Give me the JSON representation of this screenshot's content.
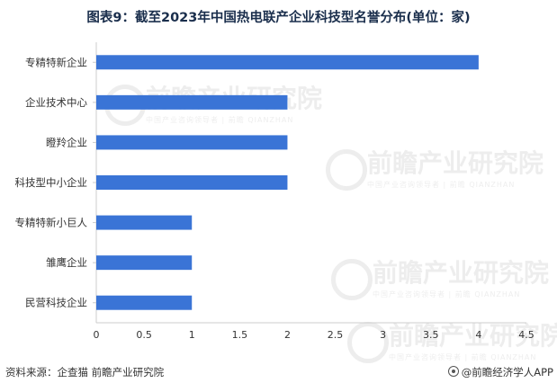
{
  "chart_data": {
    "type": "bar",
    "orientation": "horizontal",
    "title": "图表9：截至2023年中国热电联产企业科技型名誉分布(单位：家)",
    "categories": [
      "专精特新企业",
      "企业技术中心",
      "瞪羚企业",
      "科技型中小企业",
      "专精特新小巨人",
      "雏鹰企业",
      "民营科技企业"
    ],
    "values": [
      4,
      2,
      2,
      2,
      1,
      1,
      1
    ],
    "xlim": [
      0,
      4.5
    ],
    "xticks": [
      "0",
      "0.5",
      "1",
      "1.5",
      "2",
      "2.5",
      "3",
      "3.5",
      "4",
      "4.5"
    ],
    "xlabel": "",
    "ylabel": "",
    "grid": false,
    "colors": {
      "bar": "#3a74d6",
      "axis": "#cccccc",
      "text": "#333333",
      "title": "#1a2e4c"
    }
  },
  "footer": {
    "source": "资料来源：企查猫 前瞻产业研究院",
    "brand": "@前瞻经济学人APP"
  },
  "watermark": {
    "text": "前瞻产业研究院",
    "subtext": "中国产业咨询领导者 | 前瞻 QIANZHAN"
  }
}
